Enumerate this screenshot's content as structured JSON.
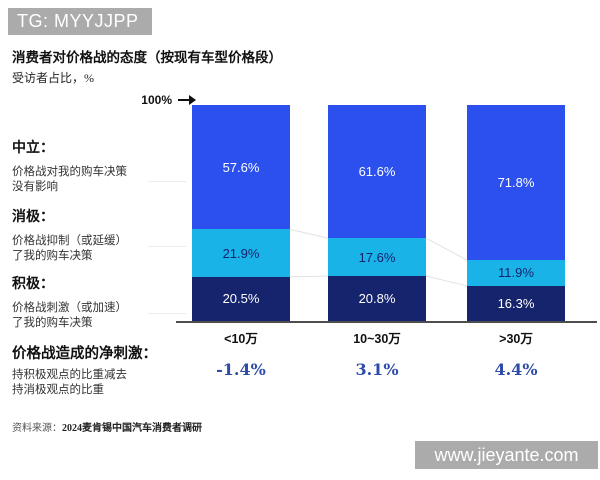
{
  "watermarks": {
    "top_tag": "TG: MYYJJPP",
    "bottom_url": "www.jieyante.com",
    "bar_color": "#ababab"
  },
  "header": {
    "title": "消费者对价格战的态度（按现有车型价格段）",
    "subtitle": "受访者占比，%"
  },
  "axis": {
    "top_label": "100%"
  },
  "legend_rows": [
    {
      "term": "中立：",
      "desc_line1": "价格战对我的购车决策",
      "desc_line2": "没有影响"
    },
    {
      "term": "消极：",
      "desc_line1": "价格战抑制（或延缓）",
      "desc_line2": "了我的购车决策"
    },
    {
      "term": "积极：",
      "desc_line1": "价格战刺激（或加速）",
      "desc_line2": "了我的购车决策"
    }
  ],
  "net_section": {
    "heading": "价格战造成的净刺激：",
    "desc_line1": "持积极观点的比重减去",
    "desc_line2": "持消极观点的比重",
    "values": [
      "-1.4%",
      "3.1%",
      "4.4%"
    ],
    "value_color": "#2d4ba8"
  },
  "footer": {
    "source_prefix": "资料来源：",
    "source_body": "2024麦肯锡中国汽车消费者调研"
  },
  "chart_data": {
    "type": "bar",
    "stacked": true,
    "stack_order": "top-to-bottom",
    "unit": "%",
    "title": "消费者对价格战的态度（按现有车型价格段）",
    "subtitle": "受访者占比，%",
    "categories": [
      "<10万",
      "10~30万",
      ">30万"
    ],
    "series": [
      {
        "name": "中立",
        "color": "#2b50ee",
        "label_color": "#ffffff",
        "values": [
          57.6,
          61.6,
          71.8
        ]
      },
      {
        "name": "消极",
        "color": "#1ab3e8",
        "label_color": "#16246e",
        "values": [
          21.9,
          17.6,
          11.9
        ]
      },
      {
        "name": "积极",
        "color": "#16246e",
        "label_color": "#ffffff",
        "values": [
          20.5,
          20.8,
          16.3
        ]
      }
    ],
    "net_stimulus": {
      "label": "价格战造成的净刺激",
      "values": [
        -1.4,
        3.1,
        4.4
      ]
    },
    "ylim": [
      0,
      100
    ],
    "value_labels": true,
    "grid": false,
    "legend_position": "left",
    "baseline_color": "#4d4d4d",
    "connector_color": "#e2e2e2"
  }
}
